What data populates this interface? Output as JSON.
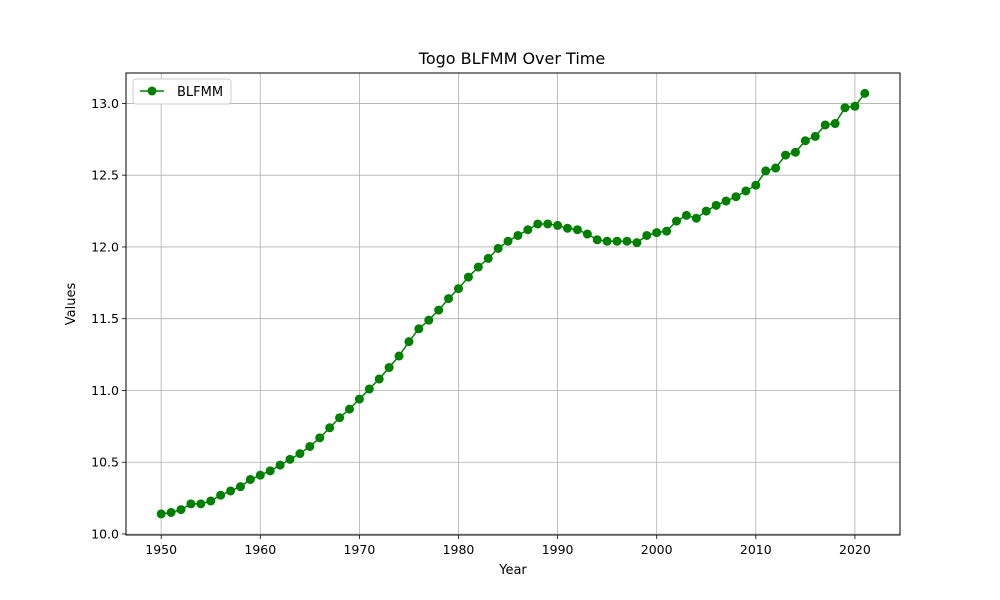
{
  "chart_data": {
    "type": "line",
    "title": "Togo BLFMM Over Time",
    "xlabel": "Year",
    "ylabel": "Values",
    "xlim": [
      1946.45,
      2024.55
    ],
    "ylim": [
      9.993,
      13.212
    ],
    "xticks": [
      1950,
      1960,
      1970,
      1980,
      1990,
      2000,
      2010,
      2020
    ],
    "yticks": [
      10.0,
      10.5,
      11.0,
      11.5,
      12.0,
      12.5,
      13.0
    ],
    "grid": true,
    "legend_position": "top-left",
    "series": [
      {
        "name": "BLFMM",
        "color": "#008000",
        "marker": "circle",
        "x": [
          1950,
          1951,
          1952,
          1953,
          1954,
          1955,
          1956,
          1957,
          1958,
          1959,
          1960,
          1961,
          1962,
          1963,
          1964,
          1965,
          1966,
          1967,
          1968,
          1969,
          1970,
          1971,
          1972,
          1973,
          1974,
          1975,
          1976,
          1977,
          1978,
          1979,
          1980,
          1981,
          1982,
          1983,
          1984,
          1985,
          1986,
          1987,
          1988,
          1989,
          1990,
          1991,
          1992,
          1993,
          1994,
          1995,
          1996,
          1997,
          1998,
          1999,
          2000,
          2001,
          2002,
          2003,
          2004,
          2005,
          2006,
          2007,
          2008,
          2009,
          2010,
          2011,
          2012,
          2013,
          2014,
          2015,
          2016,
          2017,
          2018,
          2019,
          2020,
          2021
        ],
        "y": [
          10.14,
          10.15,
          10.17,
          10.21,
          10.21,
          10.23,
          10.27,
          10.3,
          10.33,
          10.38,
          10.41,
          10.44,
          10.48,
          10.52,
          10.56,
          10.61,
          10.67,
          10.74,
          10.81,
          10.87,
          10.94,
          11.01,
          11.08,
          11.16,
          11.24,
          11.34,
          11.43,
          11.49,
          11.56,
          11.64,
          11.71,
          11.79,
          11.86,
          11.92,
          11.99,
          12.04,
          12.08,
          12.12,
          12.16,
          12.16,
          12.15,
          12.13,
          12.12,
          12.09,
          12.05,
          12.04,
          12.04,
          12.04,
          12.03,
          12.08,
          12.1,
          12.11,
          12.18,
          12.22,
          12.2,
          12.25,
          12.29,
          12.32,
          12.35,
          12.39,
          12.43,
          12.53,
          12.55,
          12.64,
          12.66,
          12.74,
          12.77,
          12.85,
          12.86,
          12.97,
          12.98,
          13.07
        ]
      }
    ]
  }
}
